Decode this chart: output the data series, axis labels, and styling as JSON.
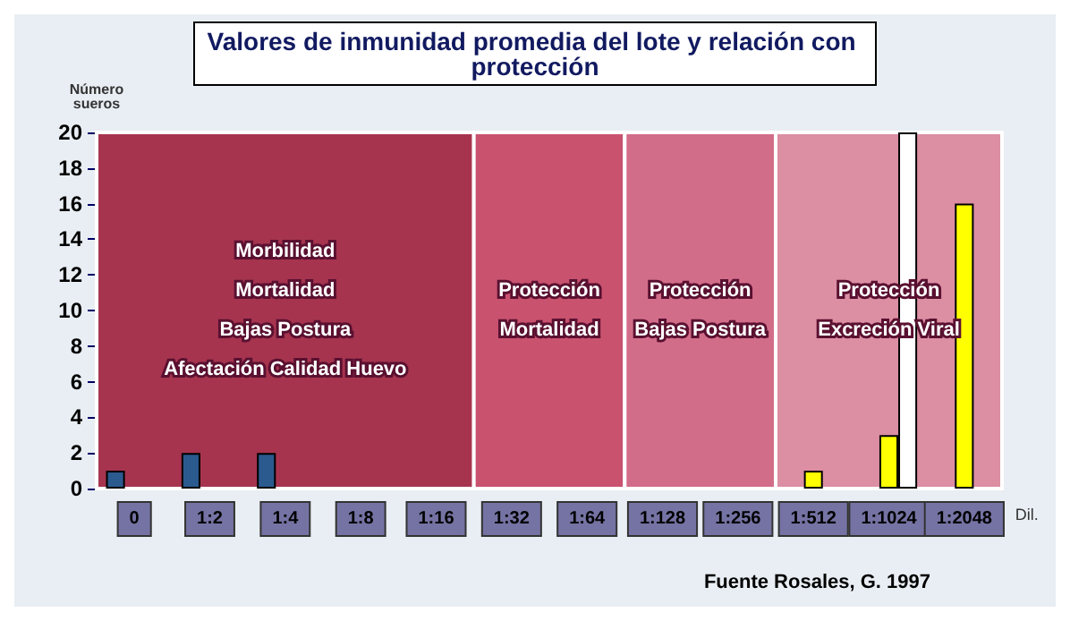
{
  "chart_data": {
    "type": "bar",
    "title": "Valores de inmunidad promedia del lote y relación con protección",
    "ylabel": "Número sueros",
    "xlabel": "Dil.",
    "categories": [
      "0",
      "1:2",
      "1:4",
      "1:8",
      "1:16",
      "1:32",
      "1:64",
      "1:128",
      "1:256",
      "1:512",
      "1:1024",
      "1:2048"
    ],
    "series": [
      {
        "color": "#2b5a8e",
        "values": [
          1,
          2,
          2,
          null,
          null,
          null,
          null,
          null,
          null,
          null,
          null,
          null
        ]
      },
      {
        "color": "#ffff00",
        "values": [
          null,
          null,
          null,
          null,
          null,
          null,
          null,
          null,
          null,
          1,
          3,
          16
        ]
      },
      {
        "color": "#ffffff",
        "values": [
          null,
          null,
          null,
          null,
          null,
          null,
          null,
          null,
          null,
          null,
          20,
          null
        ]
      }
    ],
    "ylim": [
      0,
      20
    ],
    "yticks": [
      0,
      2,
      4,
      6,
      8,
      10,
      12,
      14,
      16,
      18,
      20
    ],
    "bands": [
      {
        "axis": "x",
        "from": "0",
        "to": "1:16",
        "label": "Morbilidad\nMortalidad\nBajas Postura\nAfectación Calidad Huevo",
        "color": "#a6344f"
      },
      {
        "axis": "x",
        "from": "1:32",
        "to": "1:64",
        "label": "Protección\nMortalidad",
        "color": "#c9526f"
      },
      {
        "axis": "x",
        "from": "1:128",
        "to": "1:256",
        "label": "Protección\nBajas Postura",
        "color": "#d26d89"
      },
      {
        "axis": "x",
        "from": "1:512",
        "to": "1:2048",
        "label": "Protección\nExcreción Viral",
        "color": "#dc8ea3"
      }
    ],
    "annotations": [
      "Fuente Rosales, G. 1997"
    ]
  }
}
